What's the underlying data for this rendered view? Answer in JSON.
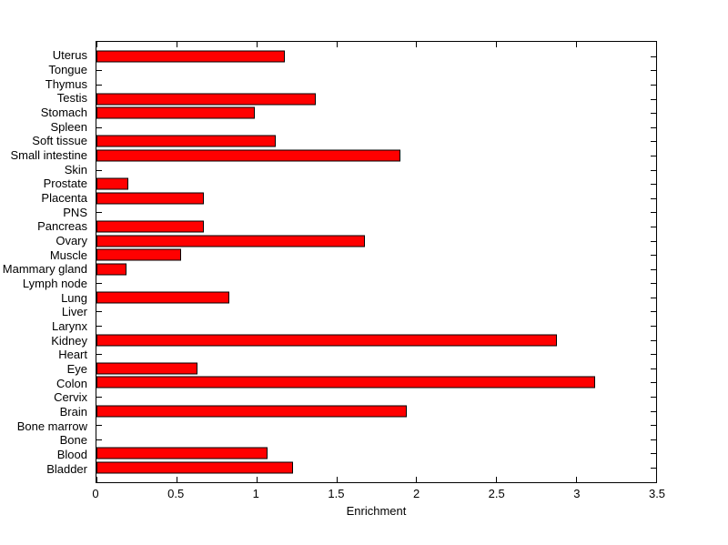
{
  "chart_data": {
    "type": "bar",
    "orientation": "horizontal",
    "title": "",
    "xlabel": "Enrichment",
    "ylabel": "",
    "xlim": [
      0,
      3.5
    ],
    "x_ticks": [
      0,
      0.5,
      1,
      1.5,
      2,
      2.5,
      3,
      3.5
    ],
    "x_tick_labels": [
      "0",
      "0.5",
      "1",
      "1.5",
      "2",
      "2.5",
      "3",
      "3.5"
    ],
    "grid": false,
    "legend": null,
    "bar_color": "#ff0000",
    "bar_edge_color": "#000000",
    "categories_top_to_bottom": [
      "Uterus",
      "Tongue",
      "Thymus",
      "Testis",
      "Stomach",
      "Spleen",
      "Soft tissue",
      "Small intestine",
      "Skin",
      "Prostate",
      "Placenta",
      "PNS",
      "Pancreas",
      "Ovary",
      "Muscle",
      "Mammary gland",
      "Lymph node",
      "Lung",
      "Liver",
      "Larynx",
      "Kidney",
      "Heart",
      "Eye",
      "Colon",
      "Cervix",
      "Brain",
      "Bone marrow",
      "Bone",
      "Blood",
      "Bladder"
    ],
    "values": [
      1.18,
      0,
      0,
      1.37,
      0.99,
      0,
      1.12,
      1.9,
      0,
      0.2,
      0.67,
      0,
      0.67,
      1.68,
      0.53,
      0.19,
      0,
      0.83,
      0,
      0,
      2.88,
      0,
      0.63,
      3.12,
      0,
      1.94,
      0,
      0,
      1.07,
      1.23
    ]
  }
}
